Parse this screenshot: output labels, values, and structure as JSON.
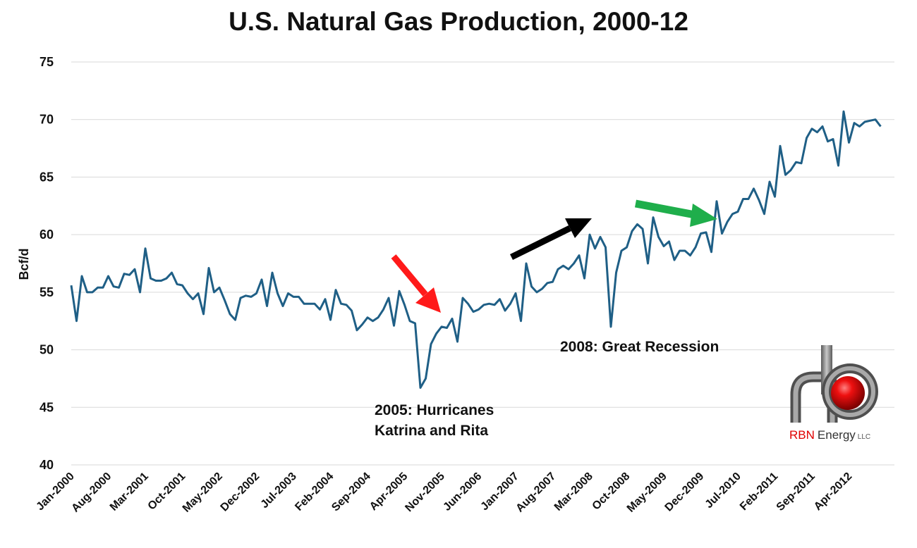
{
  "chart_data": {
    "type": "line",
    "title": "U.S. Natural Gas Production, 2000-12",
    "ylabel": "Bcf/d",
    "xlabel": "",
    "ylim": [
      40,
      75
    ],
    "yticks": [
      40,
      45,
      50,
      55,
      60,
      65,
      70,
      75
    ],
    "grid": true,
    "legend": "none",
    "colors": {
      "line": "#1f5f86",
      "grid": "#d9d9d9",
      "arrow_red": "#ff1a1a",
      "arrow_black": "#000000",
      "arrow_green": "#1fae4b",
      "logo_red": "#e00000",
      "logo_pipe": "#808080"
    },
    "x_tick_labels": [
      "Jan-2000",
      "Aug-2000",
      "Mar-2001",
      "Oct-2001",
      "May-2002",
      "Dec-2002",
      "Jul-2003",
      "Feb-2004",
      "Sep-2004",
      "Apr-2005",
      "Nov-2005",
      "Jun-2006",
      "Jan-2007",
      "Aug-2007",
      "Mar-2008",
      "Oct-2008",
      "May-2009",
      "Dec-2009",
      "Jul-2010",
      "Feb-2011",
      "Sep-2011",
      "Apr-2012"
    ],
    "x_start": "Jan-2000",
    "x_end": "Dec-2012",
    "series": [
      {
        "values": [
          55.6,
          52.5,
          56.4,
          55.0,
          55.0,
          55.4,
          55.4,
          56.4,
          55.5,
          55.4,
          56.6,
          56.5,
          57.0,
          55.0,
          58.8,
          56.2,
          56.0,
          56.0,
          56.2,
          56.7,
          55.7,
          55.6,
          54.9,
          54.4,
          54.9,
          53.1,
          57.1,
          55.0,
          55.4,
          54.3,
          53.1,
          52.6,
          54.5,
          54.7,
          54.6,
          54.9,
          56.1,
          53.8,
          56.7,
          54.9,
          53.8,
          54.9,
          54.6,
          54.6,
          54.0,
          54.0,
          54.0,
          53.5,
          54.4,
          52.6,
          55.2,
          54.0,
          53.9,
          53.4,
          51.7,
          52.2,
          52.8,
          52.5,
          52.8,
          53.5,
          54.5,
          52.1,
          55.1,
          53.9,
          52.5,
          52.3,
          46.7,
          47.5,
          50.5,
          51.4,
          52.0,
          51.9,
          52.7,
          50.7,
          54.5,
          54.0,
          53.3,
          53.5,
          53.9,
          54.0,
          53.9,
          54.4,
          53.4,
          54.0,
          54.9,
          52.5,
          57.5,
          55.5,
          55.0,
          55.3,
          55.8,
          55.9,
          57.0,
          57.3,
          57.0,
          57.5,
          58.2,
          56.2,
          60.0,
          58.8,
          59.8,
          58.9,
          52.0,
          56.7,
          58.6,
          58.9,
          60.3,
          60.9,
          60.5,
          57.5,
          61.5,
          59.8,
          59.0,
          59.4,
          57.8,
          58.6,
          58.6,
          58.2,
          58.9,
          60.1,
          60.2,
          58.5,
          62.9,
          60.1,
          61.1,
          61.8,
          62.0,
          63.1,
          63.1,
          64.0,
          63.0,
          61.8,
          64.6,
          63.3,
          67.7,
          65.2,
          65.6,
          66.3,
          66.2,
          68.4,
          69.2,
          68.9,
          69.4,
          68.1,
          68.3,
          66.0,
          70.7,
          68.0,
          69.7,
          69.4,
          69.8,
          69.9,
          70.0,
          69.4
        ]
      }
    ],
    "annotations": [
      {
        "line1": "2005: Hurricanes",
        "line2": "Katrina and Rita"
      },
      {
        "line1": "2008: Great Recession"
      }
    ]
  },
  "logo": {
    "brand": "RBN",
    "name": "Energy",
    "suffix": "LLC"
  }
}
